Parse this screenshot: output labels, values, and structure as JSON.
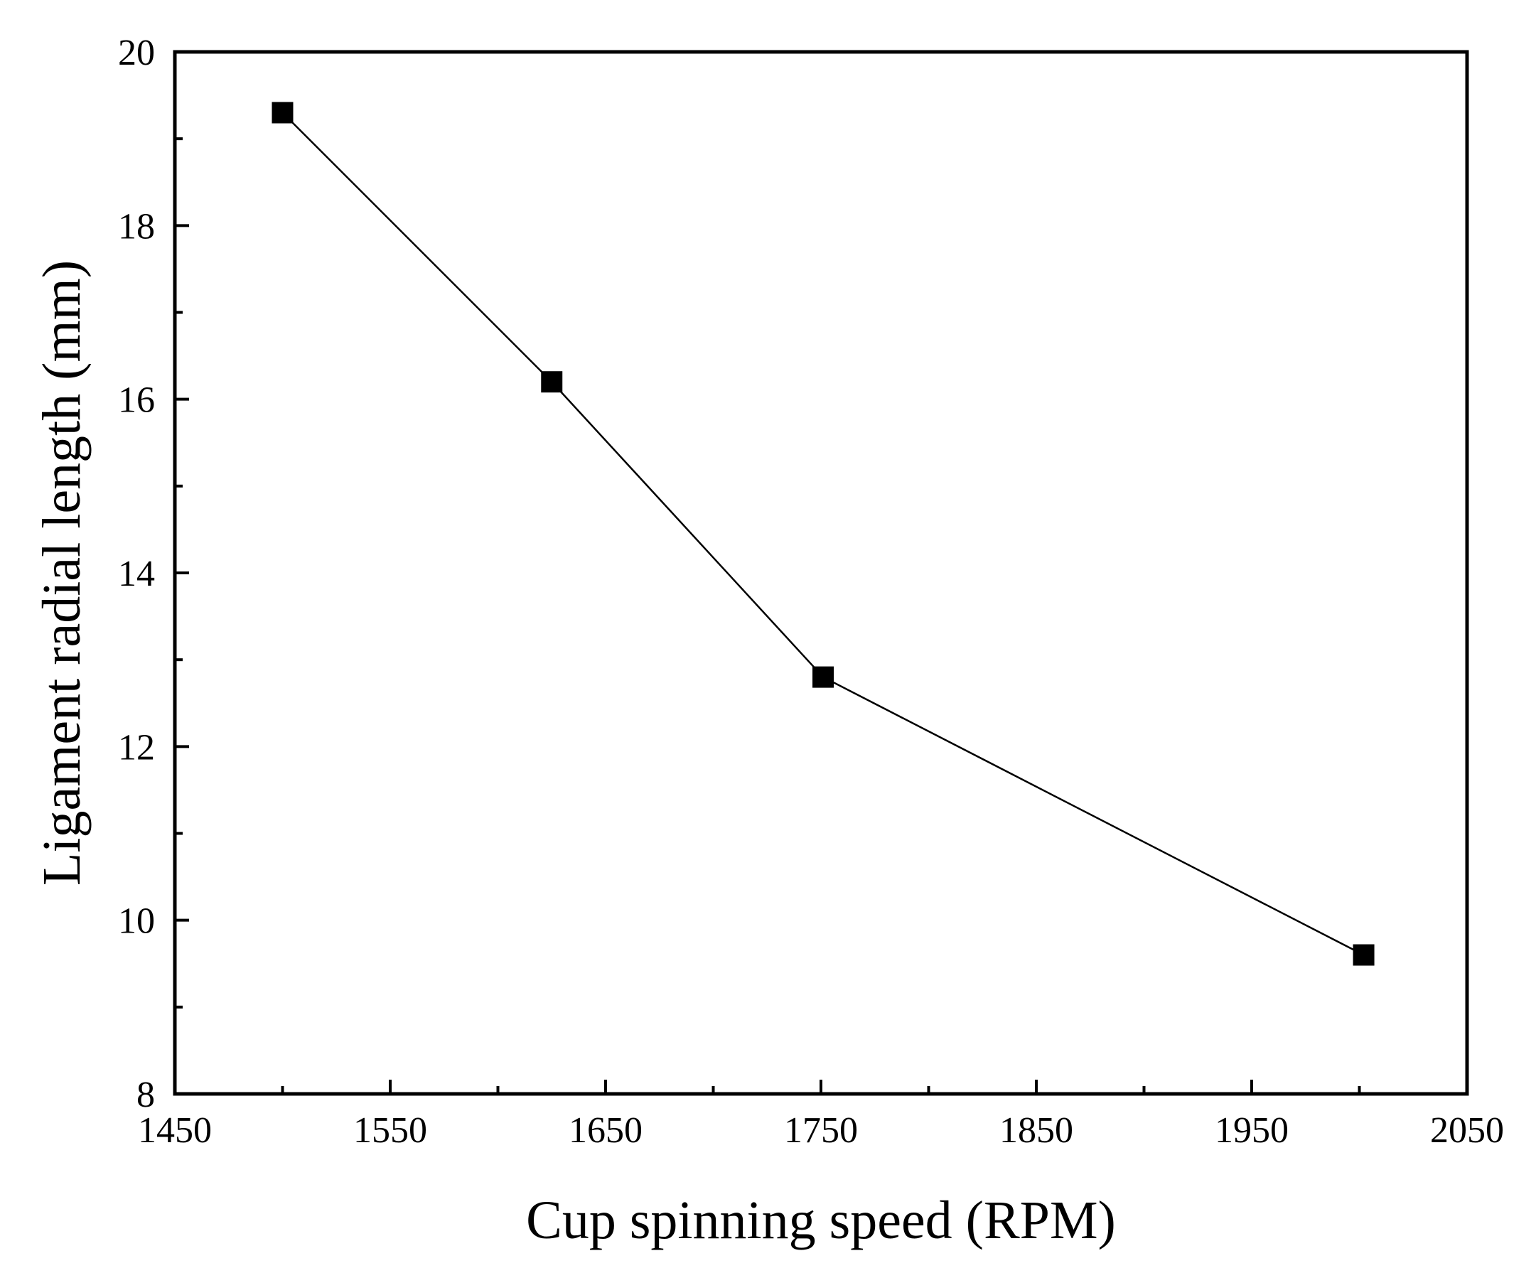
{
  "chart_data": {
    "type": "line",
    "title": "",
    "xlabel": "Cup spinning speed (RPM)",
    "ylabel": "Ligament radial length (mm)",
    "xlim": [
      1450,
      2050
    ],
    "ylim": [
      8,
      20
    ],
    "x_major_ticks": [
      1450,
      1550,
      1650,
      1750,
      1850,
      1950,
      2050
    ],
    "x_tick_labels": [
      "1450",
      "1550",
      "1650",
      "1750",
      "1850",
      "1950",
      "2050"
    ],
    "x_minor_ticks": [
      1500,
      1600,
      1700,
      1800,
      1900,
      2000
    ],
    "y_major_ticks": [
      8,
      10,
      12,
      14,
      16,
      18,
      20
    ],
    "y_tick_labels": [
      "8",
      "10",
      "12",
      "14",
      "16",
      "18",
      "20"
    ],
    "y_minor_ticks": [
      9,
      11,
      13,
      15,
      17,
      19
    ],
    "grid": false,
    "legend": null,
    "series": [
      {
        "name": "Ligament radial length",
        "marker": "filled-square",
        "color": "#000000",
        "x": [
          1500,
          1625,
          1751,
          2002
        ],
        "y": [
          19.3,
          16.2,
          12.8,
          9.6
        ]
      }
    ]
  }
}
